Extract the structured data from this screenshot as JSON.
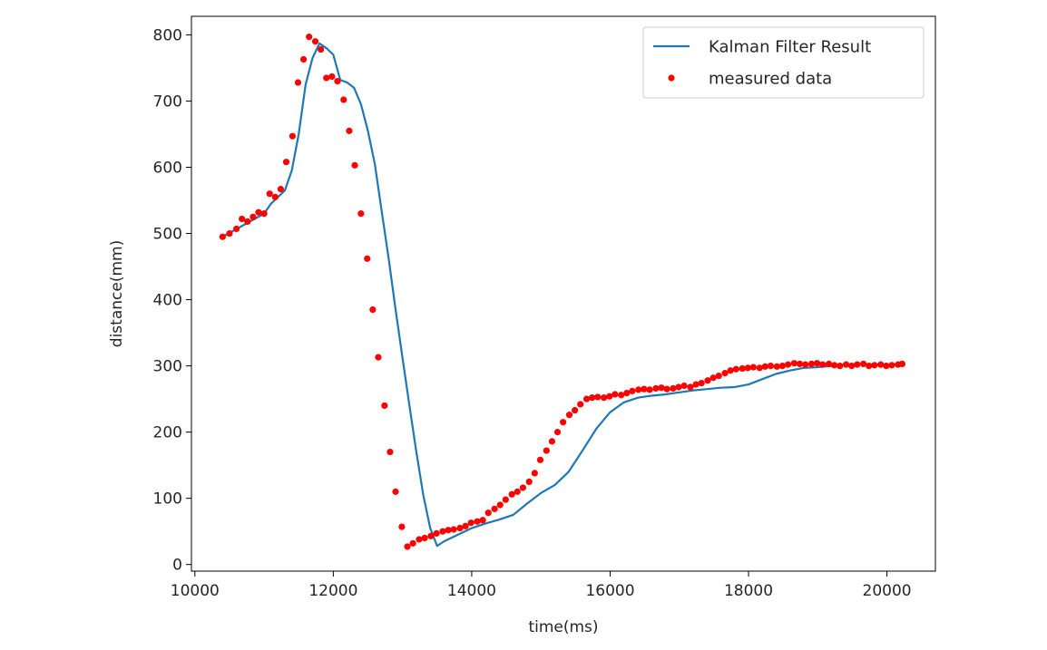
{
  "chart_data": {
    "type": "line",
    "title": "",
    "xlabel": "time(ms)",
    "ylabel": "distance(mm)",
    "xlim": [
      9950,
      20700
    ],
    "ylim": [
      -10,
      828
    ],
    "xticks": [
      10000,
      12000,
      14000,
      16000,
      18000,
      20000
    ],
    "yticks": [
      0,
      100,
      200,
      300,
      400,
      500,
      600,
      700,
      800
    ],
    "grid": false,
    "legend": {
      "position": "top-right"
    },
    "series": [
      {
        "name": "Kalman Filter Result",
        "kind": "line",
        "color": "#1f77b4",
        "x": [
          10400,
          11000,
          11100,
          11200,
          11300,
          11400,
          11500,
          11600,
          11700,
          11800,
          11900,
          12000,
          12100,
          12200,
          12300,
          12400,
          12500,
          12600,
          12700,
          12800,
          12900,
          13000,
          13100,
          13200,
          13300,
          13400,
          13500,
          13600,
          13800,
          14000,
          14200,
          14400,
          14600,
          14800,
          15000,
          15200,
          15400,
          15600,
          15800,
          16000,
          16200,
          16400,
          16600,
          16800,
          17000,
          17200,
          17400,
          17600,
          17800,
          18000,
          18200,
          18400,
          18600,
          18800,
          19000,
          19200,
          19400,
          19600,
          19800,
          20000,
          20200
        ],
        "y": [
          495,
          530,
          545,
          555,
          565,
          595,
          650,
          725,
          765,
          787,
          780,
          770,
          732,
          728,
          720,
          695,
          655,
          605,
          533,
          462,
          385,
          312,
          240,
          170,
          105,
          55,
          28,
          35,
          45,
          55,
          62,
          68,
          75,
          92,
          108,
          120,
          140,
          172,
          205,
          230,
          245,
          252,
          255,
          257,
          260,
          263,
          265,
          267,
          268,
          272,
          280,
          288,
          293,
          297,
          298,
          300,
          302,
          303,
          302,
          302,
          302
        ]
      },
      {
        "name": "measured data",
        "kind": "scatter",
        "color": "#ff0000",
        "x": [
          10400,
          10500,
          10600,
          10680,
          10760,
          10840,
          10920,
          11000,
          11080,
          11160,
          11240,
          11320,
          11410,
          11490,
          11570,
          11650,
          11740,
          11820,
          11900,
          11980,
          12060,
          12150,
          12230,
          12310,
          12400,
          12490,
          12570,
          12650,
          12740,
          12820,
          12900,
          12990,
          13070,
          13150,
          13240,
          13320,
          13410,
          13490,
          13580,
          13660,
          13740,
          13830,
          13910,
          13990,
          14080,
          14160,
          14240,
          14330,
          14410,
          14490,
          14580,
          14660,
          14740,
          14830,
          14910,
          14990,
          15080,
          15160,
          15240,
          15320,
          15410,
          15490,
          15570,
          15660,
          15740,
          15820,
          15910,
          15990,
          16070,
          16160,
          16240,
          16320,
          16410,
          16490,
          16570,
          16660,
          16740,
          16820,
          16910,
          16990,
          17070,
          17160,
          17240,
          17320,
          17410,
          17490,
          17570,
          17660,
          17740,
          17820,
          17910,
          17990,
          18070,
          18160,
          18240,
          18320,
          18410,
          18490,
          18570,
          18660,
          18740,
          18820,
          18910,
          18990,
          19070,
          19160,
          19240,
          19320,
          19410,
          19490,
          19570,
          19660,
          19740,
          19820,
          19910,
          19990,
          20070,
          20160,
          20220
        ],
        "y": [
          495,
          500,
          507,
          522,
          518,
          525,
          532,
          530,
          560,
          555,
          567,
          608,
          647,
          728,
          763,
          797,
          790,
          778,
          735,
          737,
          730,
          702,
          655,
          603,
          530,
          462,
          385,
          313,
          240,
          170,
          110,
          57,
          27,
          32,
          38,
          40,
          43,
          47,
          50,
          52,
          53,
          55,
          58,
          63,
          65,
          67,
          78,
          84,
          90,
          98,
          106,
          110,
          116,
          125,
          138,
          158,
          172,
          186,
          200,
          215,
          226,
          233,
          242,
          250,
          252,
          253,
          252,
          254,
          257,
          256,
          259,
          262,
          264,
          265,
          264,
          266,
          267,
          265,
          266,
          268,
          270,
          268,
          272,
          274,
          278,
          282,
          285,
          289,
          293,
          295,
          296,
          297,
          298,
          297,
          299,
          300,
          299,
          300,
          302,
          304,
          303,
          302,
          303,
          304,
          302,
          303,
          301,
          300,
          302,
          300,
          302,
          303,
          300,
          301,
          302,
          300,
          301,
          302,
          303
        ]
      }
    ]
  }
}
